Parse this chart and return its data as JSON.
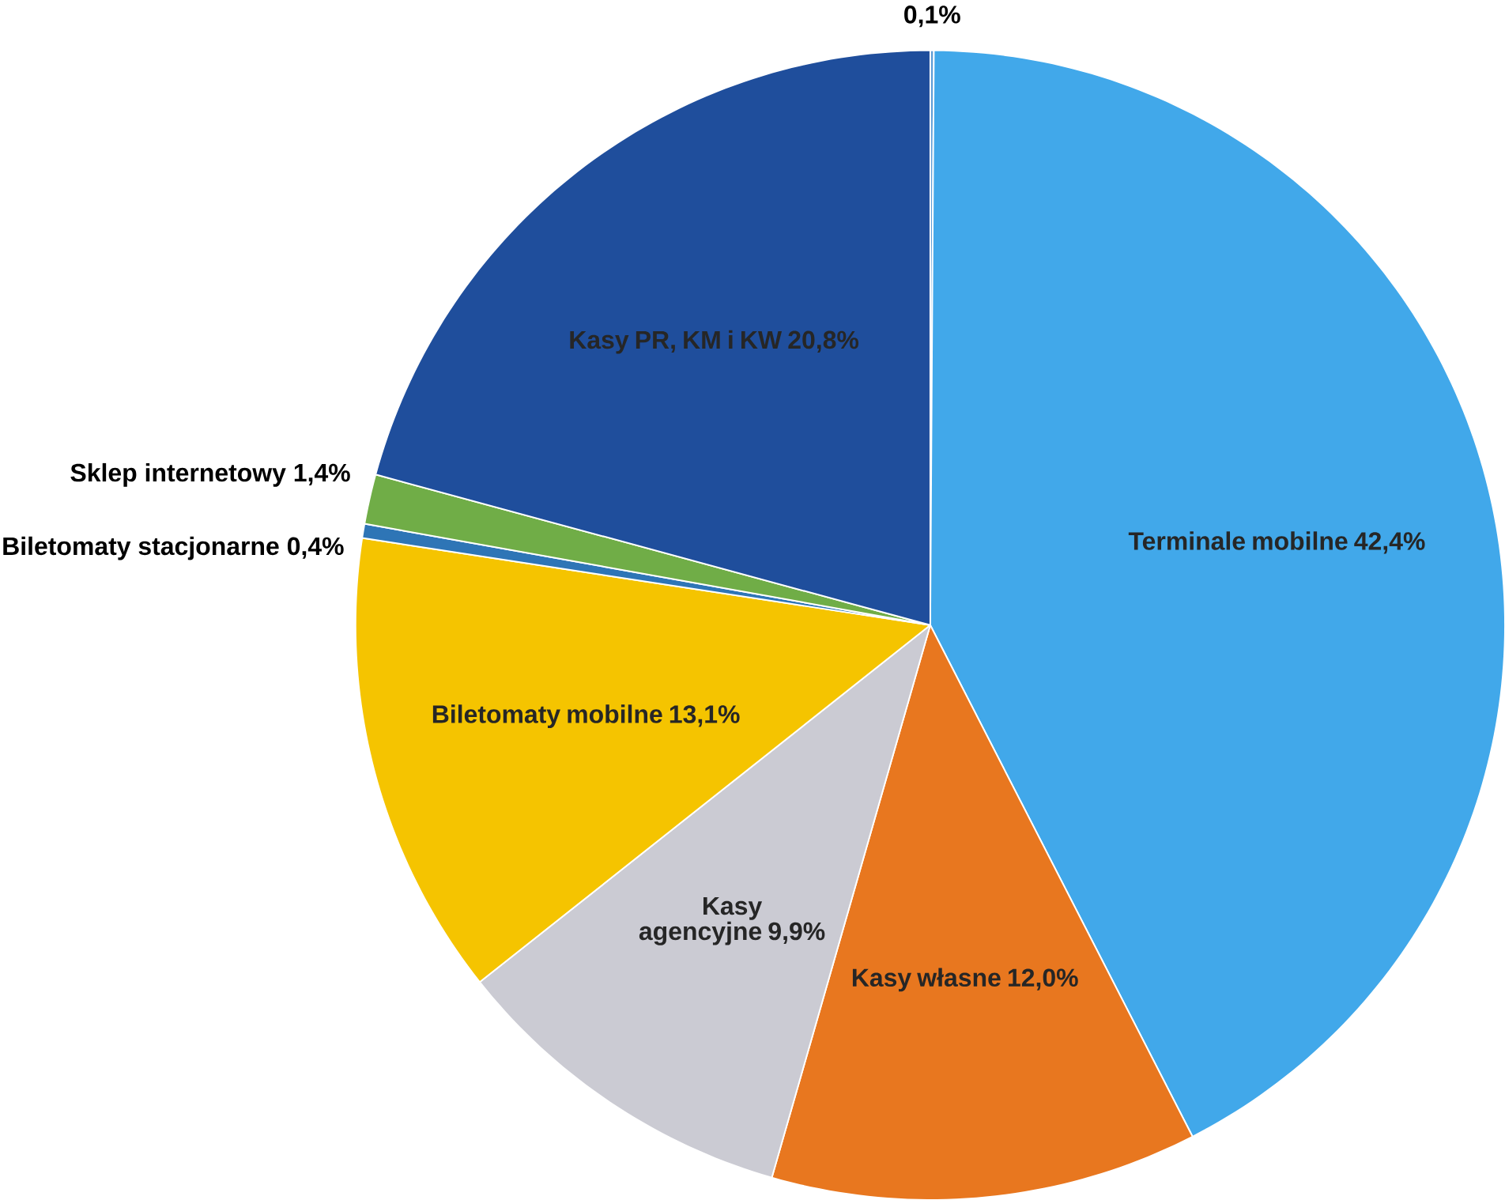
{
  "chart_data": {
    "type": "pie",
    "categories": [
      null,
      "Terminale mobilne",
      "Kasy własne",
      "Kasy agencyjne",
      "Biletomaty mobilne",
      "Biletomaty stacjonarne",
      "Sklep internetowy",
      "Kasy PR, KM i KW"
    ],
    "values": [
      0.1,
      42.4,
      12.0,
      9.9,
      13.1,
      0.4,
      1.4,
      20.8
    ],
    "value_labels": [
      "0,1%",
      "42,4%",
      "12,0%",
      "9,9%",
      "13,1%",
      "0,4%",
      "1,4%",
      "20,8%"
    ],
    "colors": [
      "#5b9bd5",
      "#41a8ea",
      "#e8771f",
      "#cbcbd3",
      "#f5c400",
      "#2e75b6",
      "#70ad47",
      "#1f4e9c"
    ]
  }
}
